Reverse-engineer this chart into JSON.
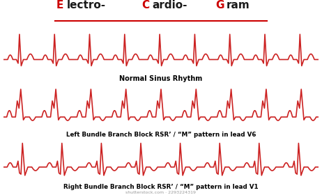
{
  "title_parts": [
    [
      "E",
      "#cc0000"
    ],
    [
      "lectro-",
      "#1a1a1a"
    ],
    [
      "C",
      "#cc0000"
    ],
    [
      "ardio-",
      "#1a1a1a"
    ],
    [
      "G",
      "#cc0000"
    ],
    [
      "ram",
      "#1a1a1a"
    ]
  ],
  "ecg_color": "#cc2222",
  "background_color": "#ffffff",
  "label1": "Normal Sinus Rhythm",
  "label2": "Left Bundle Branch Block RSR’ / “M” pattern in lead V6",
  "label3": "Right Bundle Branch Block RSR’ / “M” pattern in lead V1",
  "watermark": "shutterstock.com · 2293224319",
  "lw": 1.2,
  "title_fontsize": 11,
  "label_fontsize": 7,
  "watermark_fontsize": 4.5,
  "underline_color": "#cc0000",
  "title_color_main": "#1a1a1a"
}
